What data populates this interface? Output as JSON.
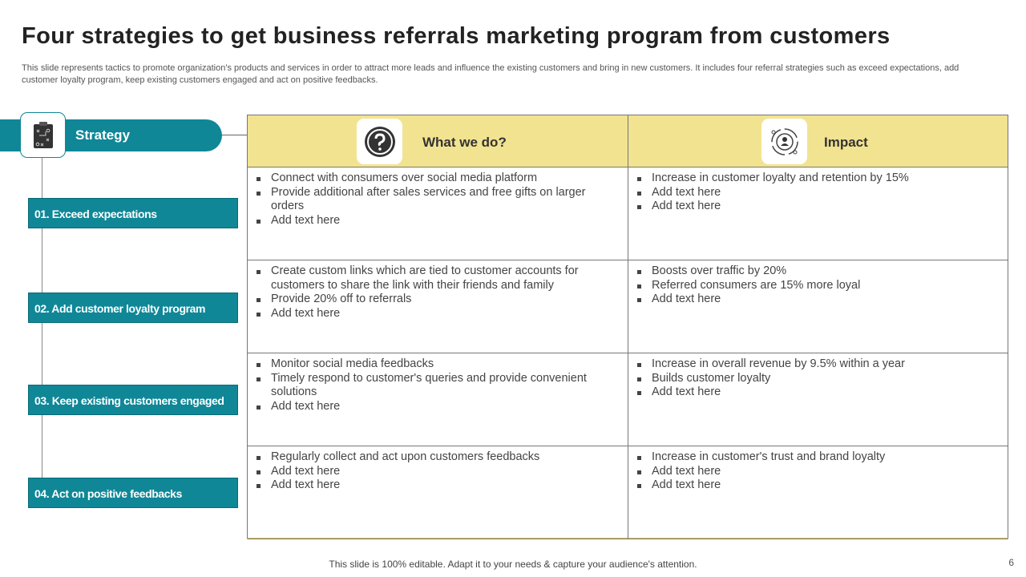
{
  "title": "Four strategies to get business referrals marketing program from customers",
  "subtitle": "This slide represents tactics to promote organization's products and services in order to attract more leads and influence the existing customers and bring in new customers. It includes four referral strategies such as exceed expectations, add customer loyalty program, keep existing customers engaged and act on positive feedbacks.",
  "strategy_header": "Strategy",
  "strategies": [
    "01. Exceed expectations",
    "02. Add customer loyalty program",
    "03. Keep existing customers engaged",
    "04. Act on positive feedbacks"
  ],
  "columns": [
    {
      "label": "What we do?",
      "icon": "question-icon"
    },
    {
      "label": "Impact",
      "icon": "impact-icon"
    }
  ],
  "rows": [
    {
      "what": [
        "Connect with consumers over social media platform",
        "Provide additional after sales services and free gifts on larger orders",
        "Add text here"
      ],
      "impact": [
        "Increase in customer loyalty and retention by 15%",
        "Add text here",
        "Add text here"
      ]
    },
    {
      "what": [
        "Create custom links which are tied to customer accounts for customers to share the link with their friends and family",
        "Provide 20% off to referrals",
        "Add text here"
      ],
      "impact": [
        "Boosts over traffic by 20%",
        "Referred consumers are 15% more loyal",
        "Add text here"
      ]
    },
    {
      "what": [
        "Monitor social media feedbacks",
        "Timely respond to customer's queries and provide convenient solutions",
        "Add text here"
      ],
      "impact": [
        "Increase in overall revenue by 9.5% within a year",
        "Builds customer loyalty",
        "Add text here"
      ]
    },
    {
      "what": [
        "Regularly collect and act upon customers feedbacks",
        "Add text here",
        "Add text here"
      ],
      "impact": [
        "Increase in customer's trust and brand loyalty",
        "Add text here",
        "Add text here"
      ]
    }
  ],
  "footer": "This slide is 100% editable. Adapt it to your needs & capture your audience's attention.",
  "page_number": "6",
  "colors": {
    "teal": "#0f8797",
    "yellow": "#f2e391"
  }
}
